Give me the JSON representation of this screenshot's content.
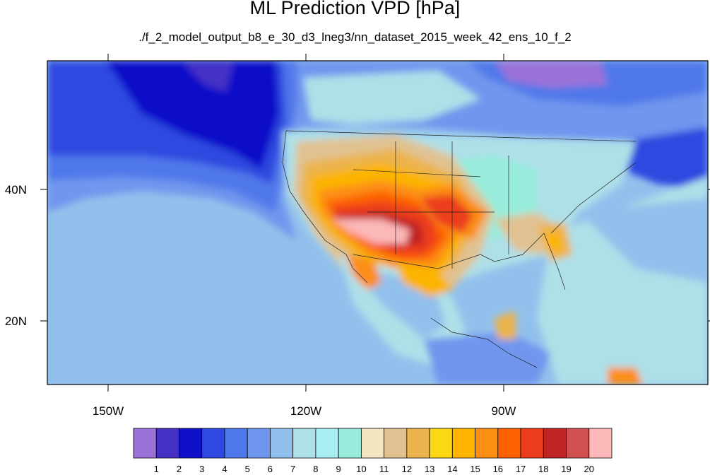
{
  "title": "ML Prediction VPD [hPa]",
  "subtitle": "./f_2_model_output_b8_e_30_d3_lneg3/nn_dataset_2015_week_42_ens_10_f_2",
  "axes": {
    "x_tick_labels": [
      "150W",
      "120W",
      "90W"
    ],
    "y_tick_labels": [
      "40N",
      "20N"
    ]
  },
  "colorbar": {
    "colors": [
      "#9a72d8",
      "#4530c4",
      "#1010c8",
      "#2f48e0",
      "#4f78ea",
      "#6f96ee",
      "#92c0ec",
      "#aee0e8",
      "#a8eef2",
      "#98ecdc",
      "#f4e6c0",
      "#e0c292",
      "#ecb44e",
      "#fcd814",
      "#fcb400",
      "#fc8e14",
      "#fc6000",
      "#ec3c1c",
      "#c02424",
      "#d05050",
      "#fcb8b8"
    ],
    "labels": [
      "1",
      "2",
      "3",
      "4",
      "5",
      "6",
      "7",
      "8",
      "9",
      "10",
      "11",
      "12",
      "13",
      "14",
      "15",
      "16",
      "17",
      "18",
      "19",
      "20"
    ]
  },
  "map": {
    "region": "North America and eastern North Pacific",
    "variable": "VPD",
    "units": "hPa",
    "lon_range": [
      -160,
      -57
    ],
    "lat_range": [
      11,
      60
    ]
  }
}
